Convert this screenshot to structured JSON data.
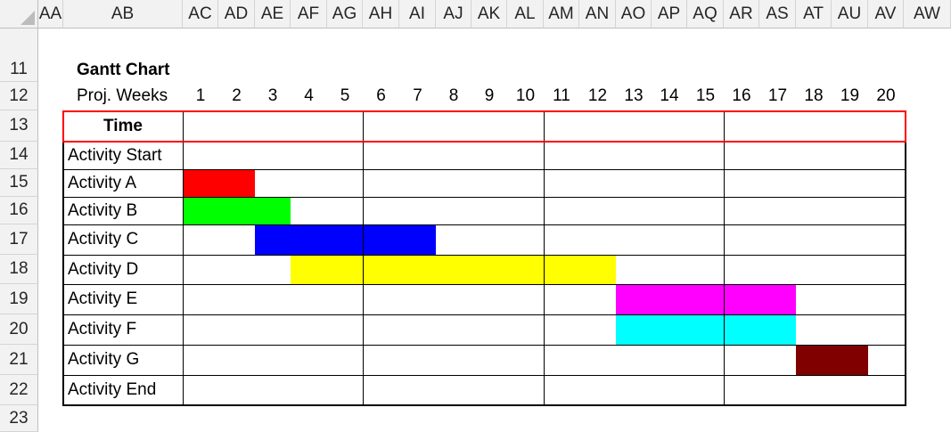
{
  "columns": [
    "AA",
    "AB",
    "AC",
    "AD",
    "AE",
    "AF",
    "AG",
    "AH",
    "AI",
    "AJ",
    "AK",
    "AL",
    "AM",
    "AN",
    "AO",
    "AP",
    "AQ",
    "AR",
    "AS",
    "AT",
    "AU",
    "AV",
    "AW"
  ],
  "rows": [
    "11",
    "12",
    "13",
    "14",
    "15",
    "16",
    "17",
    "18",
    "19",
    "20",
    "21",
    "22",
    "23"
  ],
  "title": "Gantt Chart",
  "weeks_label": "Proj. Weeks",
  "weeks": [
    "1",
    "2",
    "3",
    "4",
    "5",
    "6",
    "7",
    "8",
    "9",
    "10",
    "11",
    "12",
    "13",
    "14",
    "15",
    "16",
    "17",
    "18",
    "19",
    "20"
  ],
  "time_label": "Time",
  "activities": [
    {
      "label": "Activity Start",
      "start": null,
      "end": null,
      "color": null
    },
    {
      "label": "Activity A",
      "start": 1,
      "end": 2,
      "color": "#ff0000"
    },
    {
      "label": "Activity B",
      "start": 1,
      "end": 3,
      "color": "#00ff00"
    },
    {
      "label": "Activity C",
      "start": 3,
      "end": 7,
      "color": "#0000ff"
    },
    {
      "label": "Activity D",
      "start": 4,
      "end": 12,
      "color": "#ffff00"
    },
    {
      "label": "Activity E",
      "start": 13,
      "end": 17,
      "color": "#ff00ff"
    },
    {
      "label": "Activity F",
      "start": 13,
      "end": 17,
      "color": "#00ffff"
    },
    {
      "label": "Activity G",
      "start": 18,
      "end": 19,
      "color": "#800000"
    },
    {
      "label": "Activity End",
      "start": null,
      "end": null,
      "color": null
    }
  ],
  "colors": {
    "time_row_border": "#ff0000",
    "grid_lines": "#000000"
  }
}
